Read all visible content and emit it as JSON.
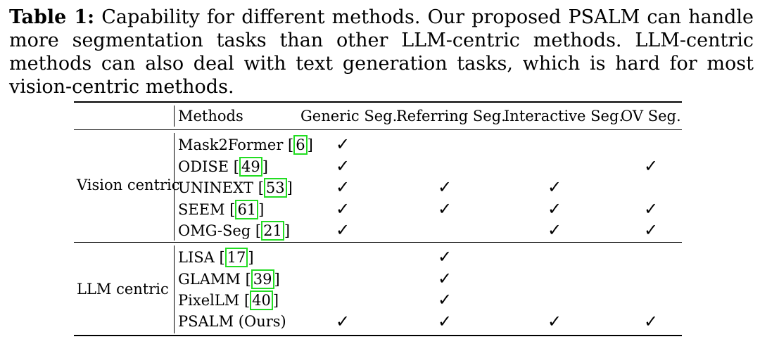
{
  "caption": {
    "label": "Table 1:",
    "text": "Capability for different methods. Our proposed PSALM can handle more segmentation tasks than other LLM-centric methods. LLM-centric methods can also deal with text generation tasks, which is hard for most vision-centric methods."
  },
  "table": {
    "headers": [
      "Methods",
      "Generic Seg.",
      "Referring Seg.",
      "Interactive Seg.",
      "OV Seg."
    ],
    "check_symbol": "✓",
    "groups": [
      {
        "name": "Vision centric",
        "rows": [
          {
            "method": "Mask2Former",
            "cite": "6",
            "checks": [
              true,
              false,
              false,
              false
            ]
          },
          {
            "method": "ODISE",
            "cite": "49",
            "checks": [
              true,
              false,
              false,
              true
            ]
          },
          {
            "method": "UNINEXT",
            "cite": "53",
            "checks": [
              true,
              true,
              true,
              false
            ]
          },
          {
            "method": "SEEM",
            "cite": "61",
            "checks": [
              true,
              true,
              true,
              true
            ]
          },
          {
            "method": "OMG-Seg",
            "cite": "21",
            "checks": [
              true,
              false,
              true,
              true
            ]
          }
        ]
      },
      {
        "name": "LLM centric",
        "rows": [
          {
            "method": "LISA",
            "cite": "17",
            "checks": [
              false,
              true,
              false,
              false
            ]
          },
          {
            "method": "GLAMM",
            "cite": "39",
            "checks": [
              false,
              true,
              false,
              false
            ]
          },
          {
            "method": "PixelLM",
            "cite": "40",
            "checks": [
              false,
              true,
              false,
              false
            ]
          },
          {
            "method": "PSALM (Ours)",
            "cite": "",
            "checks": [
              true,
              true,
              true,
              true
            ]
          }
        ]
      }
    ]
  }
}
